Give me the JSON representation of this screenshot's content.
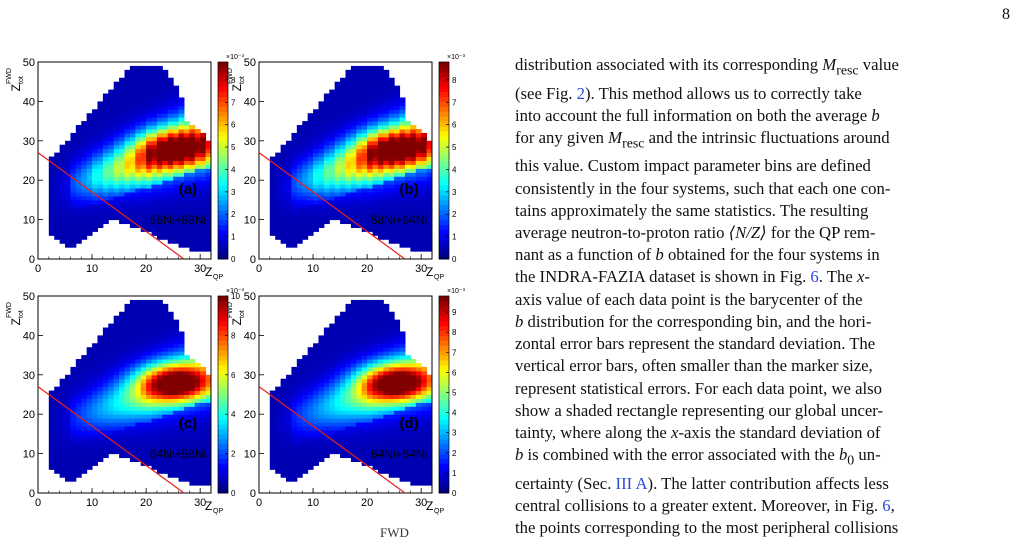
{
  "page_number": "8",
  "figure": {
    "panels": [
      {
        "tag": "(a)",
        "system": "58Ni+58Ni",
        "cbar_max": 8.8,
        "cbar_ticks": [
          0,
          1,
          2,
          3,
          4,
          5,
          6,
          7,
          8
        ],
        "exp_label": "×10⁻³"
      },
      {
        "tag": "(b)",
        "system": "58Ni+64Ni",
        "cbar_max": 8.8,
        "cbar_ticks": [
          0,
          1,
          2,
          3,
          4,
          5,
          6,
          7,
          8
        ],
        "exp_label": "×10⁻³"
      },
      {
        "tag": "(c)",
        "system": "64Ni+58Ni",
        "cbar_max": 10,
        "cbar_ticks": [
          0,
          2,
          4,
          6,
          8,
          10
        ],
        "exp_label": "×10⁻³"
      },
      {
        "tag": "(d)",
        "system": "64Ni+64Ni",
        "cbar_max": 9.8,
        "cbar_ticks": [
          0,
          1,
          2,
          3,
          4,
          5,
          6,
          7,
          8,
          9
        ],
        "exp_label": "×10⁻³"
      }
    ],
    "x_axis": {
      "label": "Z",
      "sub": "QP",
      "ticks": [
        0,
        10,
        20,
        30
      ],
      "range": [
        0,
        32
      ]
    },
    "y_axis": {
      "label": "Z",
      "sup": "FWD",
      "sub": "tot",
      "ticks": [
        0,
        10,
        20,
        30,
        40,
        50
      ],
      "range": [
        0,
        50
      ]
    },
    "line": {
      "x0": 0,
      "y0": 27,
      "x1": 27,
      "y1": 0,
      "color": "#e8201a"
    }
  },
  "text": {
    "l1a": "distribution associated with its corresponding ",
    "l1b": "M",
    "l1c": "resc",
    "l1d": " value",
    "l2a": "(see Fig. ",
    "l2b": "2",
    "l2c": "). This method allows us to correctly take",
    "l3a": "into account the full information on both the average ",
    "l3b": "b",
    "l4a": "for any given ",
    "l4b": "M",
    "l4c": "resc",
    "l4d": " and the intrinsic fluctuations around",
    "l5": "this value. Custom impact parameter bins are defined",
    "l6": "consistently in the four systems, such that each one con-",
    "l7": "tains approximately the same statistics. The resulting",
    "l8a": "average neutron-to-proton ratio ",
    "l8b": "⟨N/Z⟩",
    "l8c": " for the QP rem-",
    "l9a": "nant as a function of ",
    "l9b": "b",
    "l9c": " obtained for the four systems in",
    "l10a": "the INDRA-FAZIA dataset is shown in Fig. ",
    "l10b": "6",
    "l10c": ". The ",
    "l10d": "x",
    "l10e": "-",
    "l11": "axis value of each data point is the barycenter of the",
    "l12a": "b",
    "l12b": " distribution for the corresponding bin, and the hori-",
    "l13": "zontal error bars represent the standard deviation. The",
    "l14": "vertical error bars, often smaller than the marker size,",
    "l15": "represent statistical errors. For each data point, we also",
    "l16": "show a shaded rectangle representing our global uncer-",
    "l17a": "tainty, where along the ",
    "l17b": "x",
    "l17c": "-axis the standard deviation of",
    "l18a": "b",
    "l18b": " is combined with the error associated with the ",
    "l18c": "b",
    "l18d": "0",
    "l18e": " un-",
    "l19a": "certainty (Sec. ",
    "l19b": "III A",
    "l19c": "). The latter contribution affects less",
    "l20a": "central collisions to a greater extent. Moreover, in Fig. ",
    "l20b": "6",
    "l20c": ",",
    "l21": "the points corresponding to the most peripheral collisions"
  },
  "caption_fragment": "FWD"
}
